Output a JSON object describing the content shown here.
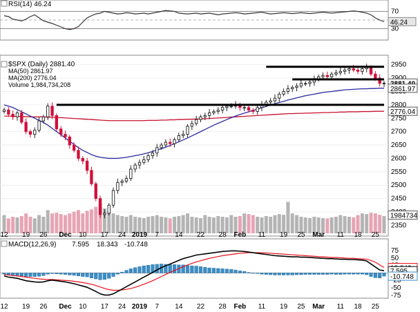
{
  "chart_data": {
    "type": "stock-chart",
    "symbol_title": "$SPX (Daily) 2881.40",
    "colors": {
      "up": "#222222",
      "down": "#d0103a",
      "ma50": "#2a2aa0",
      "ma200": "#c8102e",
      "rsi": "#333333",
      "macd": "#000000",
      "signal": "#e8101a",
      "hist": "#3a8fc8",
      "volume_up": "#b4b4b4",
      "volume_down": "#e8a4b4"
    },
    "rsi_panel": {
      "legend": "RSI(14) 46.24",
      "value_tag": "46.24",
      "levels": [
        "70",
        "50",
        "30"
      ],
      "reference_lines": [
        70,
        30
      ],
      "values": [
        60,
        58,
        52,
        50,
        48,
        52,
        58,
        62,
        55,
        48,
        45,
        42,
        38,
        34,
        30,
        28,
        30,
        35,
        45,
        55,
        60,
        64,
        66,
        70,
        68,
        66,
        64,
        65,
        67,
        66,
        64,
        65,
        66,
        64,
        66,
        68,
        70,
        72,
        71,
        70,
        66,
        65,
        64,
        65,
        66,
        64,
        65,
        66,
        64,
        62,
        64,
        65,
        66,
        67,
        66,
        64,
        65,
        66,
        67,
        68,
        66,
        64,
        65,
        66,
        67,
        66,
        65,
        66,
        67,
        66,
        65,
        66,
        67,
        68,
        67,
        66,
        67,
        68,
        69,
        70,
        71,
        70,
        68,
        66,
        62,
        55,
        50,
        46
      ]
    },
    "price_panel": {
      "legend": {
        "ma50": "MA(50) 2861.97",
        "ma200": "MA(200) 2776.04",
        "volume": "Volume 1,984,734,208"
      },
      "y_ticks": [
        "2950",
        "2900",
        "2850",
        "2800",
        "2750",
        "2700",
        "2650",
        "2600",
        "2550",
        "2500",
        "2450",
        "2400",
        "2350"
      ],
      "y_min": 2320,
      "y_max": 2975,
      "price_tags": [
        {
          "value": 2881.4,
          "text": "2881.40",
          "style": "bold"
        },
        {
          "value": 2861.97,
          "text": "2861.97",
          "style": "normal"
        },
        {
          "value": 2776.04,
          "text": "2776.04",
          "style": "normal"
        }
      ],
      "volume_tag": "1984734",
      "horizontal_levels": [
        {
          "value": 2800,
          "from_index": 12,
          "to_index": 87
        },
        {
          "value": 2895,
          "from_index": 66,
          "to_index": 87
        },
        {
          "value": 2942,
          "from_index": 60,
          "to_index": 87
        }
      ],
      "close": [
        2781,
        2765,
        2755,
        2770,
        2735,
        2700,
        2690,
        2705,
        2740,
        2755,
        2795,
        2760,
        2710,
        2690,
        2680,
        2650,
        2630,
        2600,
        2590,
        2555,
        2505,
        2450,
        2390,
        2395,
        2425,
        2480,
        2510,
        2515,
        2525,
        2560,
        2575,
        2585,
        2595,
        2610,
        2620,
        2640,
        2650,
        2660,
        2655,
        2670,
        2685,
        2690,
        2720,
        2730,
        2745,
        2755,
        2760,
        2770,
        2775,
        2780,
        2790,
        2795,
        2795,
        2800,
        2790,
        2790,
        2780,
        2775,
        2790,
        2800,
        2810,
        2815,
        2825,
        2840,
        2850,
        2860,
        2865,
        2870,
        2880,
        2880,
        2885,
        2895,
        2905,
        2910,
        2905,
        2915,
        2920,
        2925,
        2930,
        2935,
        2930,
        2925,
        2935,
        2940,
        2915,
        2900,
        2880,
        2881
      ],
      "ma50": [
        2800,
        2795,
        2790,
        2782,
        2774,
        2766,
        2758,
        2750,
        2742,
        2734,
        2724,
        2712,
        2700,
        2688,
        2676,
        2664,
        2652,
        2640,
        2630,
        2622,
        2614,
        2608,
        2604,
        2602,
        2600,
        2600,
        2600,
        2602,
        2604,
        2607,
        2610,
        2613,
        2617,
        2621,
        2626,
        2631,
        2636,
        2642,
        2648,
        2655,
        2662,
        2669,
        2676,
        2684,
        2692,
        2700,
        2708,
        2716,
        2724,
        2731,
        2738,
        2745,
        2752,
        2758,
        2764,
        2769,
        2774,
        2779,
        2784,
        2789,
        2794,
        2799,
        2804,
        2809,
        2813,
        2818,
        2822,
        2826,
        2830,
        2834,
        2837,
        2840,
        2843,
        2846,
        2848,
        2850,
        2852,
        2854,
        2856,
        2857,
        2858,
        2859,
        2860,
        2860,
        2861,
        2861,
        2862,
        2862
      ],
      "ma200": [
        2758,
        2758,
        2757,
        2757,
        2756,
        2756,
        2755,
        2755,
        2755,
        2755,
        2754,
        2754,
        2753,
        2752,
        2751,
        2750,
        2749,
        2748,
        2747,
        2746,
        2745,
        2744,
        2743,
        2742,
        2741,
        2741,
        2741,
        2741,
        2741,
        2741,
        2741,
        2741,
        2741,
        2742,
        2742,
        2742,
        2743,
        2743,
        2744,
        2744,
        2745,
        2745,
        2746,
        2746,
        2747,
        2747,
        2748,
        2749,
        2750,
        2751,
        2752,
        2753,
        2754,
        2755,
        2756,
        2757,
        2758,
        2759,
        2760,
        2761,
        2762,
        2763,
        2764,
        2765,
        2766,
        2767,
        2767,
        2768,
        2768,
        2769,
        2769,
        2770,
        2770,
        2771,
        2771,
        2772,
        2772,
        2773,
        2773,
        2774,
        2774,
        2774,
        2775,
        2775,
        2775,
        2776,
        2776,
        2776
      ],
      "volume_relative": [
        0.55,
        0.45,
        0.5,
        0.48,
        0.52,
        0.6,
        0.5,
        0.45,
        0.55,
        0.5,
        0.7,
        0.6,
        0.62,
        0.58,
        0.55,
        0.6,
        0.65,
        0.7,
        0.6,
        0.68,
        0.72,
        0.8,
        0.9,
        0.75,
        0.65,
        0.6,
        0.55,
        0.52,
        0.5,
        0.55,
        0.5,
        0.48,
        0.46,
        0.5,
        0.52,
        0.55,
        0.5,
        0.48,
        0.45,
        0.5,
        0.52,
        0.55,
        0.6,
        0.5,
        0.48,
        0.46,
        0.55,
        0.5,
        0.48,
        0.52,
        0.5,
        0.48,
        0.55,
        0.5,
        0.52,
        0.6,
        0.58,
        0.55,
        0.5,
        0.48,
        0.52,
        0.5,
        0.55,
        0.58,
        0.56,
        0.95,
        0.6,
        0.55,
        0.5,
        0.48,
        0.46,
        0.5,
        0.48,
        0.46,
        0.45,
        0.48,
        0.5,
        0.55,
        0.52,
        0.5,
        0.48,
        0.55,
        0.6,
        0.58,
        0.62,
        0.6,
        0.56,
        0.52
      ]
    },
    "macd_panel": {
      "legend_title": "MACD(12,26,9)",
      "legend_macd": "7.595",
      "legend_signal": "18.343",
      "legend_hist": "-10.748",
      "y_ticks": [
        "75",
        "50",
        "25",
        "0",
        "-25",
        "-50",
        "-75"
      ],
      "y_min": -80,
      "y_max": 82,
      "value_tags": [
        {
          "value": 18.343,
          "text": "18.343"
        },
        {
          "value": 7.595,
          "text": "7.595"
        },
        {
          "value": -10.748,
          "text": "-10.748"
        }
      ],
      "macd": [
        -10,
        -14,
        -16,
        -18,
        -22,
        -26,
        -28,
        -30,
        -31,
        -30,
        -26,
        -24,
        -26,
        -28,
        -30,
        -33,
        -36,
        -40,
        -44,
        -48,
        -55,
        -62,
        -70,
        -74,
        -74,
        -70,
        -62,
        -54,
        -46,
        -38,
        -30,
        -22,
        -14,
        -6,
        2,
        10,
        18,
        24,
        30,
        36,
        42,
        48,
        52,
        56,
        60,
        62,
        64,
        66,
        68,
        70,
        72,
        73,
        74,
        74,
        73,
        72,
        70,
        68,
        66,
        64,
        62,
        60,
        58,
        57,
        56,
        55,
        54,
        54,
        53,
        53,
        52,
        51,
        50,
        49,
        48,
        48,
        47,
        46,
        46,
        45,
        45,
        44,
        43,
        40,
        30,
        20,
        10,
        7.6
      ],
      "signal": [
        -6,
        -7,
        -9,
        -10,
        -12,
        -14,
        -16,
        -18,
        -20,
        -21,
        -22,
        -22,
        -23,
        -24,
        -25,
        -26,
        -28,
        -30,
        -32,
        -35,
        -38,
        -42,
        -47,
        -52,
        -56,
        -58,
        -58,
        -57,
        -55,
        -52,
        -48,
        -43,
        -38,
        -32,
        -26,
        -19,
        -12,
        -5,
        2,
        8,
        15,
        21,
        27,
        32,
        37,
        41,
        45,
        49,
        52,
        55,
        58,
        60,
        62,
        64,
        66,
        67,
        68,
        68,
        68,
        68,
        67,
        66,
        65,
        64,
        63,
        62,
        61,
        60,
        59,
        58,
        57,
        56,
        55,
        54,
        53,
        52,
        52,
        51,
        50,
        49,
        49,
        48,
        47,
        46,
        42,
        36,
        27,
        18.3
      ]
    },
    "x_axis": {
      "labels": [
        {
          "text": "12",
          "index": 0,
          "bold": false
        },
        {
          "text": "19",
          "index": 5,
          "bold": false
        },
        {
          "text": "26",
          "index": 9,
          "bold": false
        },
        {
          "text": "Dec",
          "index": 14,
          "bold": true
        },
        {
          "text": "10",
          "index": 18,
          "bold": false
        },
        {
          "text": "17",
          "index": 23,
          "bold": false
        },
        {
          "text": "24",
          "index": 27,
          "bold": false
        },
        {
          "text": "2019",
          "index": 31,
          "bold": true
        },
        {
          "text": "7",
          "index": 35,
          "bold": false
        },
        {
          "text": "14",
          "index": 40,
          "bold": false
        },
        {
          "text": "22",
          "index": 45,
          "bold": false
        },
        {
          "text": "28",
          "index": 50,
          "bold": false
        },
        {
          "text": "Feb",
          "index": 54,
          "bold": true
        },
        {
          "text": "11",
          "index": 59,
          "bold": false
        },
        {
          "text": "19",
          "index": 64,
          "bold": false
        },
        {
          "text": "25",
          "index": 68,
          "bold": false
        },
        {
          "text": "Mar",
          "index": 72,
          "bold": true
        },
        {
          "text": "11",
          "index": 77,
          "bold": false
        },
        {
          "text": "18",
          "index": 81,
          "bold": false
        },
        {
          "text": "25",
          "index": 85,
          "bold": false
        }
      ]
    }
  }
}
